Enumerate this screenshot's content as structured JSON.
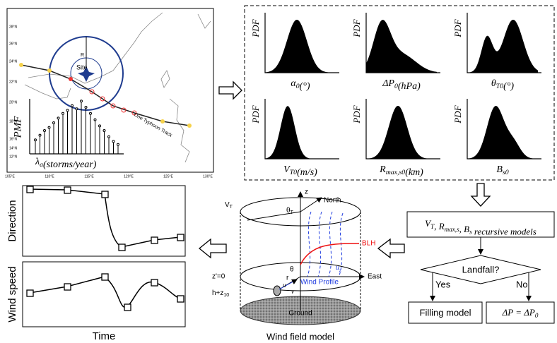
{
  "map": {
    "lat_labels": [
      "28°N",
      "26°N",
      "24°N",
      "22°N",
      "20°N",
      "18°N",
      "16°N",
      "14°N",
      "12°N"
    ],
    "lon_labels": [
      "105°E",
      "110°E",
      "115°E",
      "120°E",
      "125°E",
      "130°E"
    ],
    "site": "Site",
    "radius": "R",
    "pmf": "PMF",
    "rate": {
      "parts": [
        {
          "t": "λ",
          "sub": "a"
        },
        {
          "t": "(storms/year)"
        }
      ]
    },
    "track": "One Typhoon Track"
  },
  "pdf_panels": [
    {
      "ylabel": "PDF",
      "xlabel": {
        "parts": [
          {
            "t": "α",
            "sub": "0"
          },
          {
            "t": "(°)"
          }
        ]
      }
    },
    {
      "ylabel": "PDF",
      "xlabel": {
        "parts": [
          {
            "t": "ΔP",
            "sub": "0"
          },
          {
            "t": "(hPa)"
          }
        ]
      }
    },
    {
      "ylabel": "PDF",
      "xlabel": {
        "parts": [
          {
            "t": "θ",
            "sub": "T0"
          },
          {
            "t": "(°)"
          }
        ]
      }
    },
    {
      "ylabel": "PDF",
      "xlabel": {
        "parts": [
          {
            "t": "V",
            "sub": "T0"
          },
          {
            "t": "(m/s)"
          }
        ]
      }
    },
    {
      "ylabel": "PDF",
      "xlabel": {
        "parts": [
          {
            "t": "R",
            "sub": "max,s0"
          },
          {
            "t": "(km)"
          }
        ]
      }
    },
    {
      "ylabel": "PDF",
      "xlabel": {
        "parts": [
          {
            "t": "B",
            "sub": "s0"
          }
        ]
      }
    }
  ],
  "flow": {
    "recursive": {
      "parts": [
        {
          "t": "V",
          "sub": "T"
        },
        {
          "t": ", R",
          "sub": "max,s"
        },
        {
          "t": ", B",
          "sub": "s"
        },
        {
          "t": " recursive models"
        }
      ]
    },
    "decision": "Landfall?",
    "yes": "Yes",
    "no": "No",
    "filling": "Filling model",
    "delta": {
      "parts": [
        {
          "t": "ΔP = ΔP",
          "sub": "0"
        }
      ]
    }
  },
  "wind_field": {
    "z": "z",
    "north": "North",
    "vt": {
      "parts": [
        {
          "t": "V",
          "sub": "T"
        }
      ]
    },
    "theta_t": {
      "parts": [
        {
          "t": "θ",
          "sub": "T"
        }
      ]
    },
    "blh": "BLH",
    "z0": "z'=0",
    "theta": "θ",
    "r": "r",
    "east": "East",
    "profile": "Wind Profile",
    "uz": {
      "parts": [
        {
          "t": "u",
          "sub": "z"
        }
      ]
    },
    "height": {
      "parts": [
        {
          "t": "h+z",
          "sub": "10"
        }
      ]
    },
    "u": "u",
    "v": "v",
    "ground": "Ground",
    "caption": "Wind field model"
  },
  "series": {
    "direction": "Direction",
    "speed": "Wind speed",
    "time": "Time"
  }
}
